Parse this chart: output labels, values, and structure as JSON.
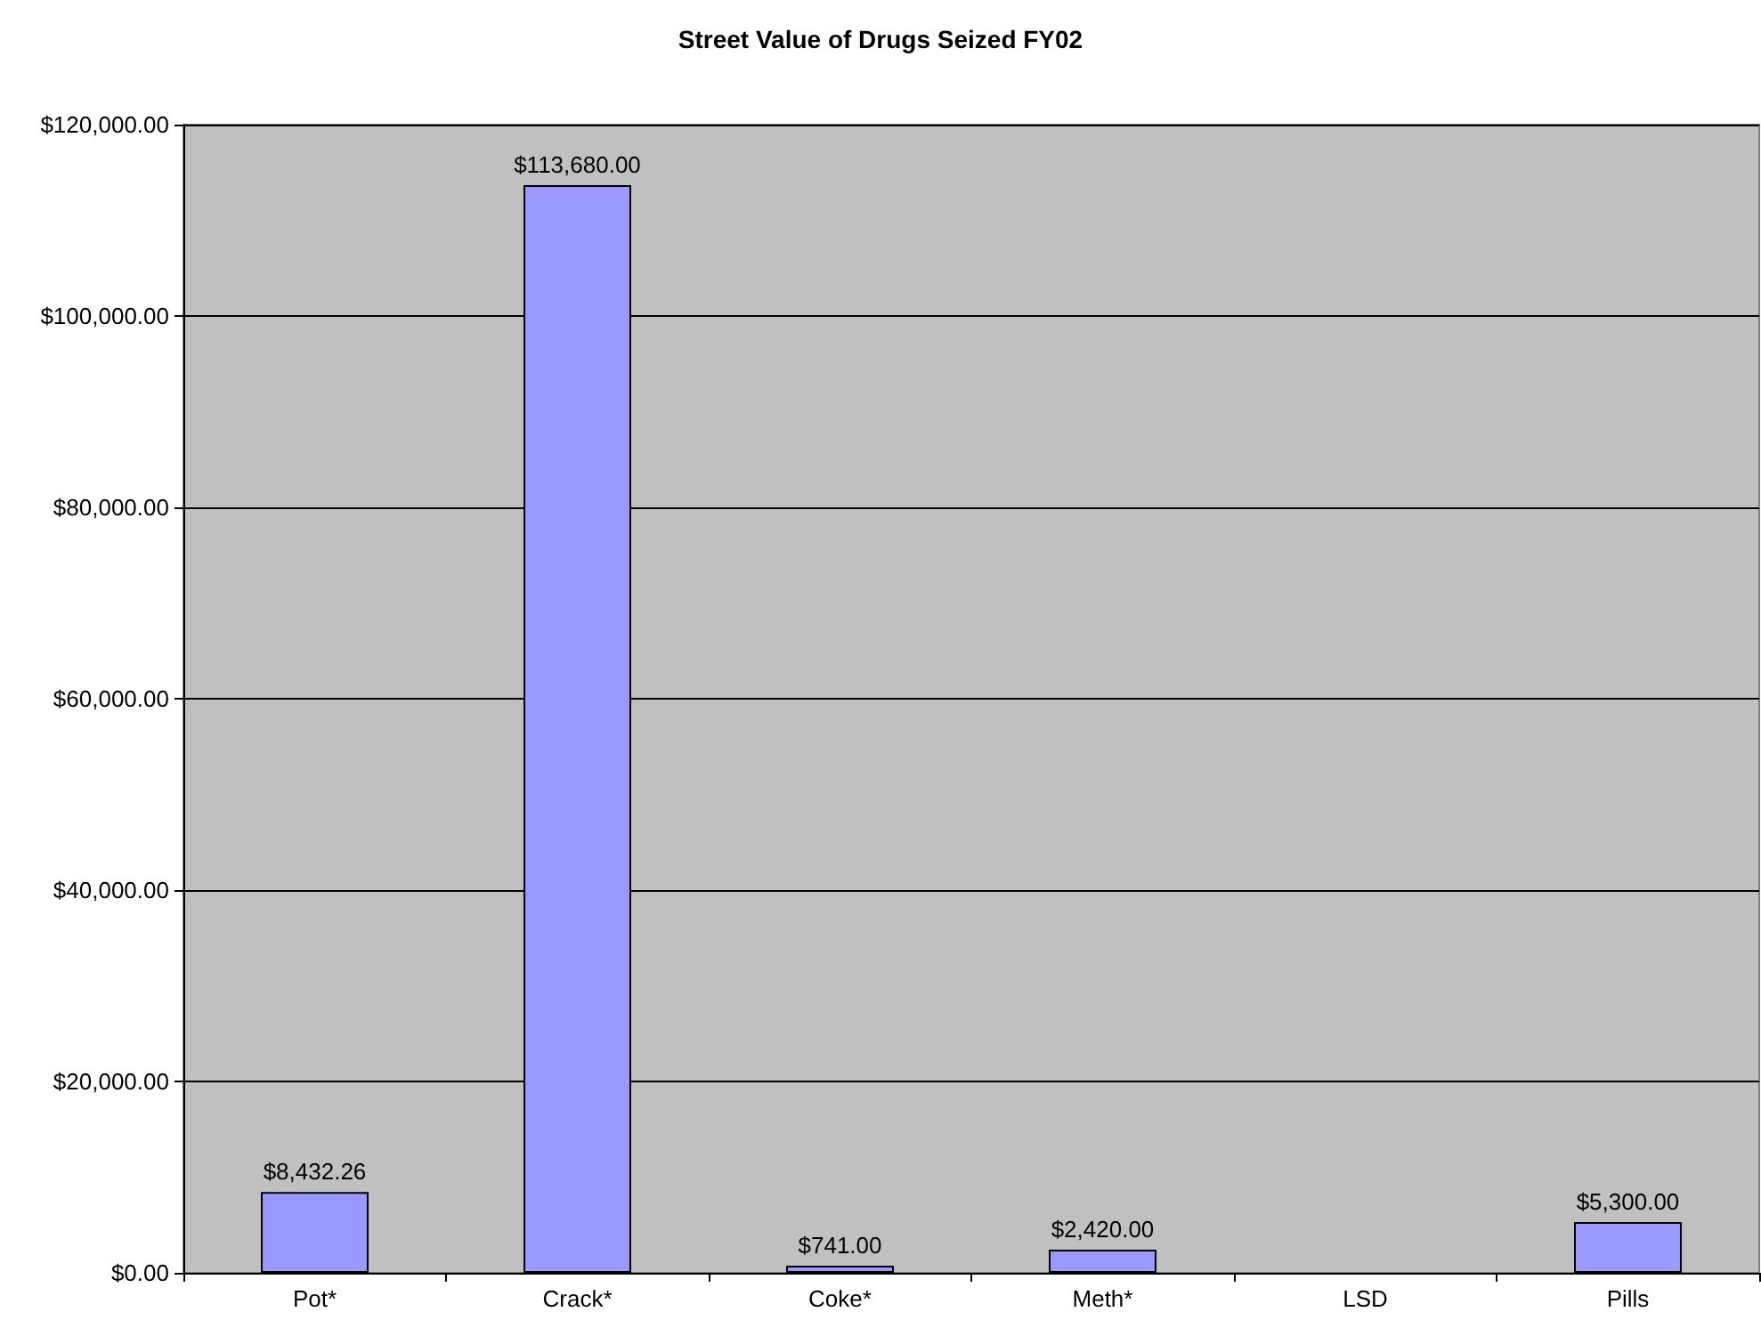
{
  "chart_data": {
    "type": "bar",
    "title": "Street Value of Drugs Seized FY02",
    "categories": [
      "Pot*",
      "Crack*",
      "Coke*",
      "Meth*",
      "LSD",
      "Pills"
    ],
    "values": [
      8432.26,
      113680,
      741,
      2420,
      null,
      5300
    ],
    "value_labels": [
      "$8,432.26",
      "$113,680.00",
      "$741.00",
      "$2,420.00",
      null,
      "$5,300.00"
    ],
    "color": "#9999ff",
    "ylim": [
      0,
      120000
    ],
    "yticks": [
      {
        "value": 0,
        "label": "$0.00"
      },
      {
        "value": 20000,
        "label": "$20,000.00"
      },
      {
        "value": 40000,
        "label": "$40,000.00"
      },
      {
        "value": 60000,
        "label": "$60,000.00"
      },
      {
        "value": 80000,
        "label": "$80,000.00"
      },
      {
        "value": 100000,
        "label": "$100,000.00"
      },
      {
        "value": 120000,
        "label": "$120,000.00"
      }
    ],
    "grid": "y"
  }
}
